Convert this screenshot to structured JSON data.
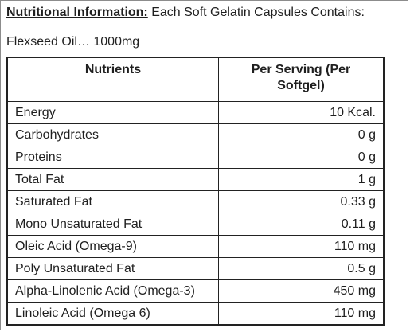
{
  "header": {
    "label": "Nutritional Information:",
    "text": " Each Soft Gelatin Capsules Contains:"
  },
  "subheader": "Flexseed Oil… 1000mg",
  "table": {
    "columns": [
      "Nutrients",
      "Per Serving (Per Softgel)"
    ],
    "rows": [
      {
        "nutrient": "Energy",
        "value": "10 Kcal."
      },
      {
        "nutrient": "Carbohydrates",
        "value": "0 g"
      },
      {
        "nutrient": "Proteins",
        "value": "0 g"
      },
      {
        "nutrient": "Total Fat",
        "value": "1 g"
      },
      {
        "nutrient": "Saturated Fat",
        "value": "0.33 g"
      },
      {
        "nutrient": "Mono Unsaturated Fat",
        "value": "0.11 g"
      },
      {
        "nutrient": "Oleic Acid (Omega-9)",
        "value": "110 mg"
      },
      {
        "nutrient": "Poly Unsaturated Fat",
        "value": "0.5 g"
      },
      {
        "nutrient": "Alpha-Linolenic Acid (Omega-3)",
        "value": "450 mg"
      },
      {
        "nutrient": "Linoleic Acid (Omega 6)",
        "value": "110 mg"
      }
    ]
  }
}
